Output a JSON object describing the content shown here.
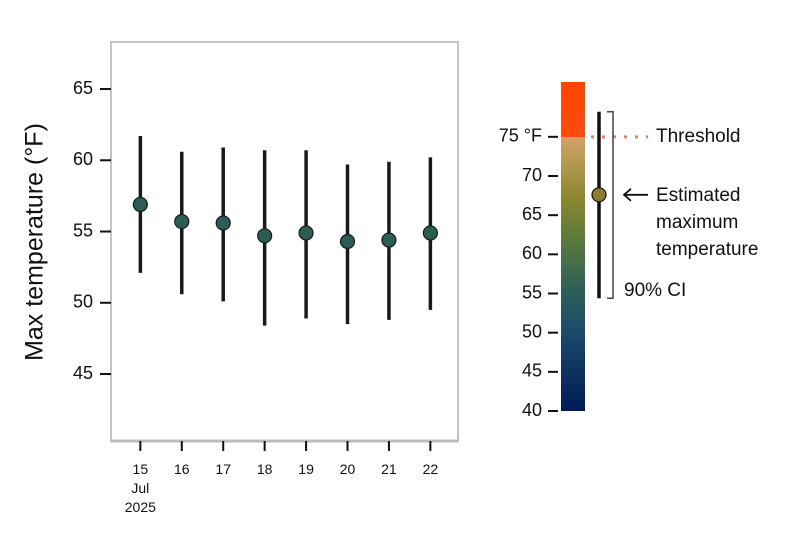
{
  "chart_data": {
    "type": "pointrange",
    "ylabel": "Max temperature (°F)",
    "x": [
      "2025-07-15",
      "2025-07-16",
      "2025-07-17",
      "2025-07-18",
      "2025-07-19",
      "2025-07-20",
      "2025-07-21",
      "2025-07-22"
    ],
    "series": [
      {
        "values": [
          56.9,
          55.7,
          55.6,
          54.7,
          54.9,
          54.3,
          54.4,
          54.9
        ],
        "lower": [
          52.1,
          50.6,
          50.1,
          48.4,
          48.9,
          48.5,
          48.8,
          49.5
        ],
        "upper": [
          61.7,
          60.6,
          60.9,
          60.7,
          60.7,
          59.7,
          59.9,
          60.2
        ],
        "color": "#2b5d55"
      }
    ],
    "xlim": [
      "2025-07-14T07:00:00Z",
      "2025-07-22T16:00:00Z"
    ],
    "xticks": [
      {
        "value": "2025-07-15",
        "label": "15 Jul 2025"
      },
      {
        "value": "2025-07-16",
        "label": "16"
      },
      {
        "value": "2025-07-17",
        "label": "17"
      },
      {
        "value": "2025-07-18",
        "label": "18"
      },
      {
        "value": "2025-07-19",
        "label": "19"
      },
      {
        "value": "2025-07-20",
        "label": "20"
      },
      {
        "value": "2025-07-21",
        "label": "21"
      },
      {
        "value": "2025-07-22",
        "label": "22"
      }
    ],
    "ylim": [
      40.3,
      68.3
    ],
    "yticks": [
      45,
      50,
      55,
      60,
      65
    ],
    "colorbar": {
      "lim": [
        40,
        82
      ],
      "ticks": [
        40,
        45,
        50,
        55,
        60,
        65,
        70,
        {
          "value": 75,
          "label": "75 °F"
        }
      ],
      "stops": [
        {
          "value": 40,
          "color": "#001a57"
        },
        {
          "value": 50,
          "color": "#1b4a6b"
        },
        {
          "value": 55,
          "color": "#2b5d5a"
        },
        {
          "value": 62,
          "color": "#5b7a3c"
        },
        {
          "value": 67,
          "color": "#8a872e"
        },
        {
          "value": 72,
          "color": "#b89a52"
        },
        {
          "value": 75,
          "color": "#d4a06a"
        },
        {
          "value": 75,
          "color": "#ff4a10"
        },
        {
          "value": 82,
          "color": "#ff4500"
        }
      ],
      "threshold": 75,
      "threshold_label": "Threshold",
      "threshold_color": "#ff2a00",
      "example": {
        "value": 67.6,
        "lower": 54.4,
        "upper": 78.2,
        "color": "#8c7d2e"
      },
      "example_label": "Estimated maximum temperature",
      "ci_label": "90% CI"
    }
  }
}
